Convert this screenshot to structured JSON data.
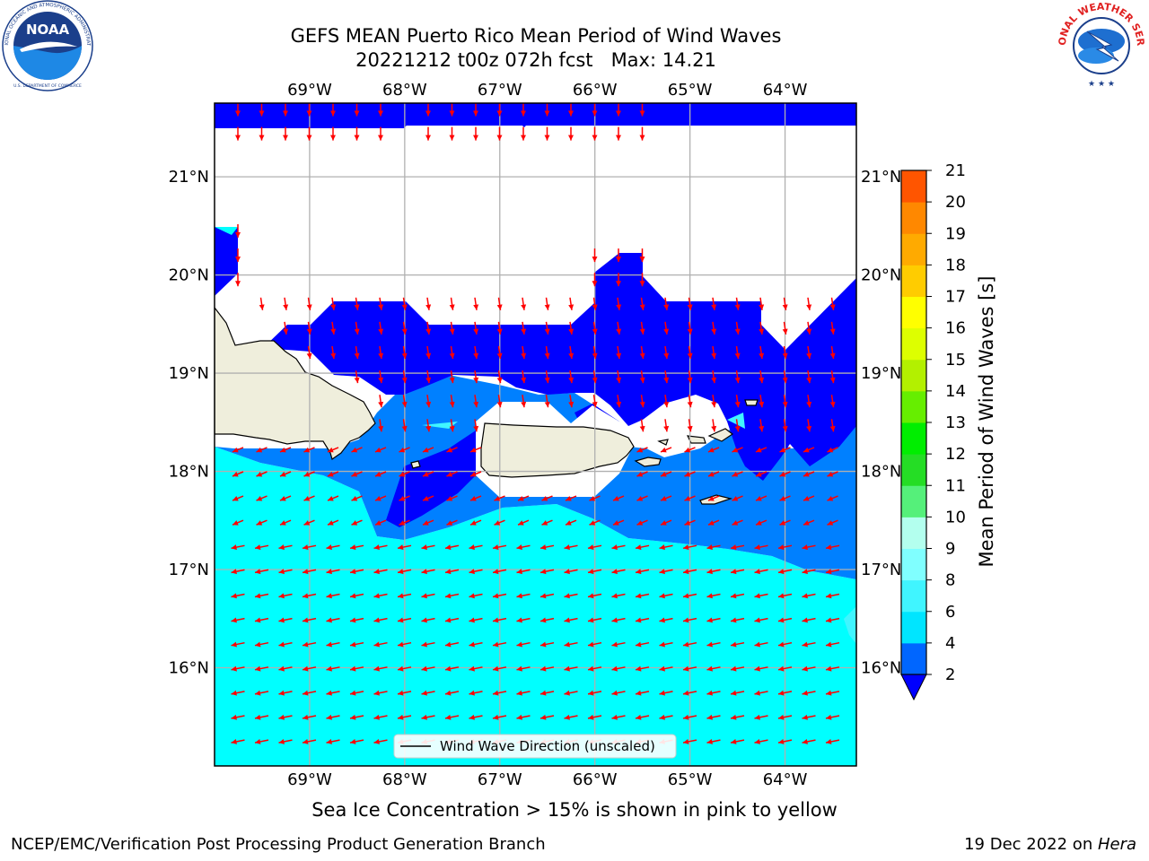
{
  "header": {
    "title_line1": "GEFS MEAN Puerto Rico Mean Period of Wind Waves",
    "title_line2": "20221212 t00z 072h fcst   Max: 14.21"
  },
  "logos": {
    "left": "noaa-logo",
    "right": "nws-logo",
    "noaa_text": "NOAA",
    "noaa_ring_text": "NATIONAL OCEANIC AND ATMOSPHERIC ADMINISTRATION",
    "noaa_ring_bottom": "U.S. DEPARTMENT OF COMMERCE",
    "nws_ring_text": "NATIONAL WEATHER SERVICE"
  },
  "map": {
    "lon_labels": [
      "69°W",
      "68°W",
      "67°W",
      "66°W",
      "65°W",
      "64°W"
    ],
    "lat_labels": [
      "21°N",
      "20°N",
      "19°N",
      "18°N",
      "17°N",
      "16°N"
    ],
    "lon_range": [
      -70.0,
      -63.25
    ],
    "lat_range": [
      15.0,
      21.75
    ],
    "legend_label": "Wind Wave Direction (unscaled)",
    "arrow_color": "#ff0000",
    "land_color": "#efeedc"
  },
  "colorbar": {
    "label": "Mean Period of Wind Waves [s]",
    "ticks": [
      "2",
      "4",
      "6",
      "8",
      "9",
      "10",
      "11",
      "12",
      "13",
      "14",
      "15",
      "16",
      "17",
      "18",
      "19",
      "20",
      "21"
    ],
    "colors": [
      "#0066ff",
      "#00e5ff",
      "#40f5ff",
      "#80ffff",
      "#b3ffee",
      "#55f07a",
      "#25dd25",
      "#00ee00",
      "#66ee00",
      "#b3f000",
      "#ddff00",
      "#ffff00",
      "#ffcc00",
      "#ffaa00",
      "#ff8800",
      "#ff5500",
      "#ff2200",
      "#ff0000"
    ],
    "under_color": "#0000ff"
  },
  "notes": {
    "ice": "Sea Ice Concentration > 15% is shown in pink to yellow",
    "footer_left": "NCEP/EMC/Verification Post Processing Product Generation Branch",
    "footer_date": "19 Dec 2022 on ",
    "footer_host": "Hera"
  }
}
